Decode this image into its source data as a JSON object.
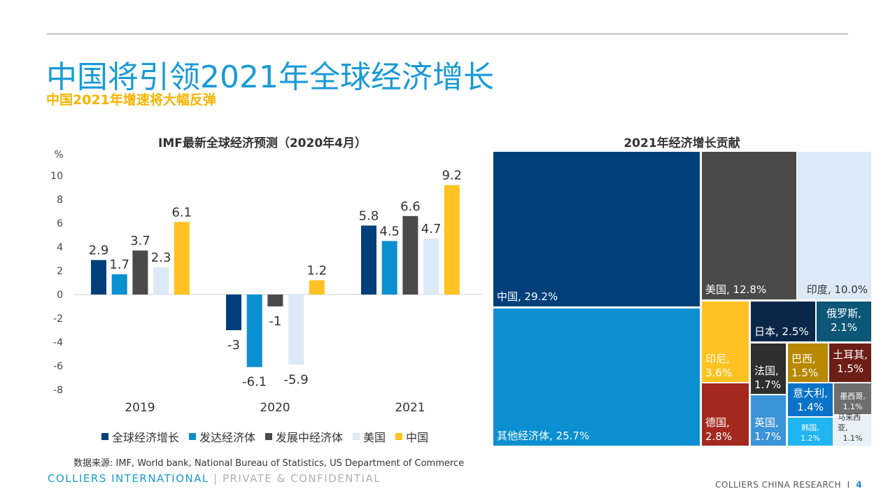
{
  "header": {
    "title": "中国将引领2021年全球经济增长",
    "subtitle": "中国2021年增速将大幅反弹"
  },
  "chart_data": [
    {
      "type": "bar",
      "title": "IMF最新全球经济预测（2020年4月）",
      "ylabel": "%",
      "ylim": [
        -8,
        10
      ],
      "yticks": [
        10,
        8,
        6,
        4,
        2,
        0,
        -2,
        -4,
        -6,
        -8
      ],
      "categories": [
        "2019",
        "2020",
        "2021"
      ],
      "series": [
        {
          "name": "全球经济增长",
          "color": "#003f7a",
          "values": [
            2.9,
            -3,
            5.8
          ]
        },
        {
          "name": "发达经济体",
          "color": "#0a8fd0",
          "values": [
            1.7,
            -6.1,
            4.5
          ]
        },
        {
          "name": "发展中经济体",
          "color": "#4a4a4a",
          "values": [
            3.7,
            -1,
            6.6
          ]
        },
        {
          "name": "美国",
          "color": "#dce9f6",
          "values": [
            2.3,
            -5.9,
            4.7
          ]
        },
        {
          "name": "中国",
          "color": "#ffc222",
          "values": [
            6.1,
            1.2,
            9.2
          ]
        }
      ],
      "legend": "bottom",
      "grid": false
    },
    {
      "type": "treemap",
      "title": "2021年经济增长贡献",
      "items": [
        {
          "label": "中国",
          "value": "29.2%",
          "color": "#003f7a"
        },
        {
          "label": "其他经济体",
          "value": "25.7%",
          "color": "#0a8fd0"
        },
        {
          "label": "美国",
          "value": "12.8%",
          "color": "#4a4a4a"
        },
        {
          "label": "印度",
          "value": "10.0%",
          "color": "#dce9f6",
          "text": "#333333"
        },
        {
          "label": "印尼",
          "value": "3.6%",
          "color": "#ffc222"
        },
        {
          "label": "德国",
          "value": "2.8%",
          "color": "#a3291e"
        },
        {
          "label": "日本",
          "value": "2.5%",
          "color": "#0b2748"
        },
        {
          "label": "俄罗斯",
          "value": "2.1%",
          "color": "#0c5677"
        },
        {
          "label": "法国",
          "value": "1.7%",
          "color": "#2e2e2e"
        },
        {
          "label": "巴西",
          "value": "1.5%",
          "color": "#b78800"
        },
        {
          "label": "土耳其",
          "value": "1.5%",
          "color": "#6d1e16"
        },
        {
          "label": "英国",
          "value": "1.7%",
          "color": "#3b93d8"
        },
        {
          "label": "意大利",
          "value": "1.4%",
          "color": "#0a72c8"
        },
        {
          "label": "墨西哥",
          "value": "1.1%",
          "color": "#6e6e6e"
        },
        {
          "label": "韩国",
          "value": "1.2%",
          "color": "#1fb5f0"
        },
        {
          "label": "马来西亚",
          "value": "1.1%",
          "color": "#e8f0f8",
          "text": "#333333"
        }
      ]
    }
  ],
  "source": "数据来源: IMF, World bank, National Bureau of Statistics, US Department of Commerce",
  "footer": {
    "brand": "COLLIERS INTERNATIONAL",
    "sep": " | ",
    "confidential": "PRIVATE & CONFIDENTIAL",
    "research": "COLLIERS CHINA RESEARCH",
    "page_sep": "  I  ",
    "page": "4"
  }
}
